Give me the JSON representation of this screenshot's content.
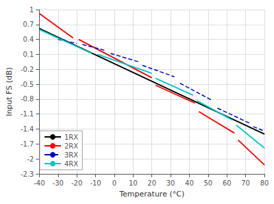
{
  "chart_data": {
    "type": "line",
    "xlabel": "Temperature (°C)",
    "ylabel": "Input FS (dB)",
    "xlim": [
      -40,
      80
    ],
    "ylim": [
      -2.3,
      1.0
    ],
    "xticks": [
      -40,
      -30,
      -20,
      -10,
      0,
      10,
      20,
      30,
      40,
      50,
      60,
      70,
      80
    ],
    "yticks": [
      -2.3,
      -2,
      -1.7,
      -1.4,
      -1.1,
      -0.8,
      -0.5,
      -0.2,
      0.1,
      0.4,
      0.7,
      1
    ],
    "grid": true,
    "legend": "lower left",
    "series": [
      {
        "name": "1RX",
        "color": "#000000",
        "line_style": "solid",
        "segments": [
          [
            [
              -40,
              0.62
            ],
            [
              80,
              -1.5
            ]
          ]
        ]
      },
      {
        "name": "2RX",
        "color": "#ff0000",
        "line_style": "solid",
        "segments": [
          [
            [
              -40,
              0.92
            ],
            [
              -22,
              0.43
            ]
          ],
          [
            [
              -19,
              0.4
            ],
            [
              20,
              -0.37
            ]
          ],
          [
            [
              22,
              -0.52
            ],
            [
              43,
              -0.88
            ]
          ],
          [
            [
              45,
              -1.05
            ],
            [
              64,
              -1.48
            ]
          ],
          [
            [
              66,
              -1.62
            ],
            [
              80,
              -2.12
            ]
          ]
        ]
      },
      {
        "name": "3RX",
        "color": "#0000cc",
        "line_style": "dashed",
        "segments": [
          [
            [
              -30,
              0.4
            ],
            [
              -20,
              0.32
            ]
          ],
          [
            [
              -17,
              0.3
            ],
            [
              -5,
              0.18
            ]
          ],
          [
            [
              -2,
              0.12
            ],
            [
              13,
              -0.05
            ]
          ],
          [
            [
              15,
              -0.12
            ],
            [
              32,
              -0.35
            ]
          ],
          [
            [
              35,
              -0.48
            ],
            [
              52,
              -0.82
            ]
          ],
          [
            [
              55,
              -0.98
            ],
            [
              72,
              -1.28
            ]
          ],
          [
            [
              74,
              -1.35
            ],
            [
              80,
              -1.44
            ]
          ]
        ]
      },
      {
        "name": "4RX",
        "color": "#00c8c8",
        "line_style": "solid",
        "segments": [
          [
            [
              -40,
              0.6
            ],
            [
              -12,
              0.12
            ]
          ],
          [
            [
              -9,
              0.1
            ],
            [
              20,
              -0.28
            ]
          ],
          [
            [
              22,
              -0.38
            ],
            [
              42,
              -0.72
            ]
          ],
          [
            [
              44,
              -0.83
            ],
            [
              63,
              -1.22
            ]
          ],
          [
            [
              65,
              -1.32
            ],
            [
              80,
              -1.78
            ]
          ]
        ]
      }
    ]
  }
}
